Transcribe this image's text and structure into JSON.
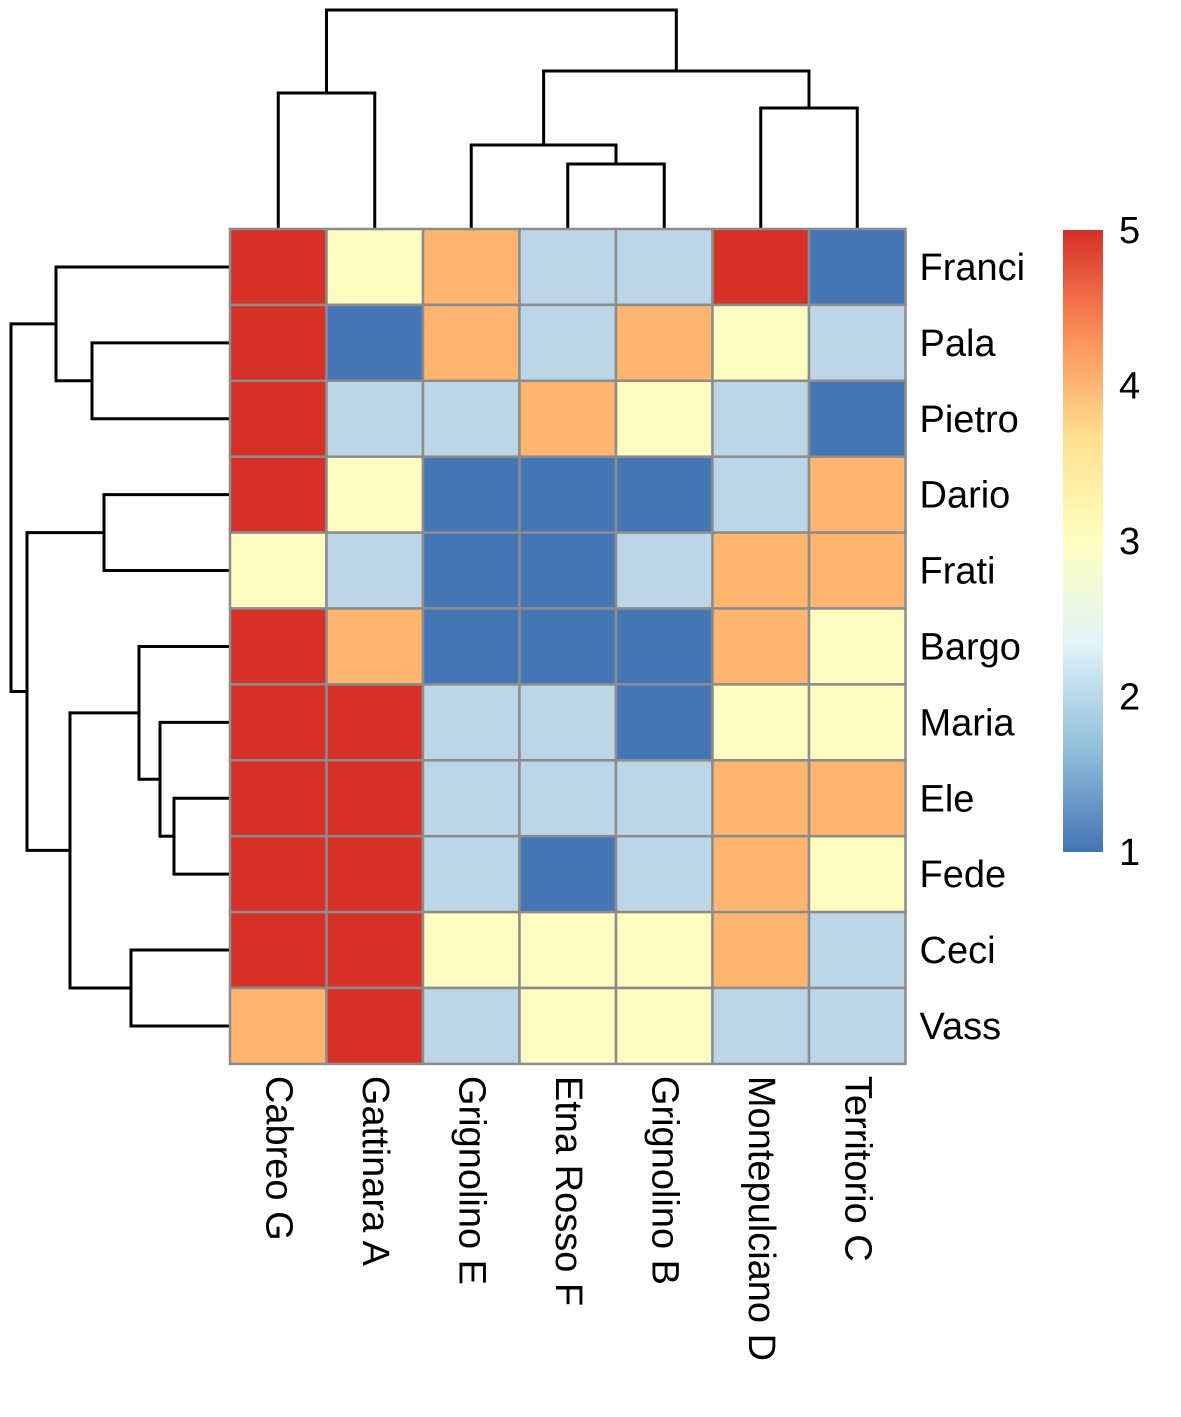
{
  "chart_data": {
    "type": "heatmap",
    "columns": [
      "Cabreo G",
      "Gattinara A",
      "Grignolino E",
      "Etna Rosso F",
      "Grignolino B",
      "Montepulciano D",
      "Territorio C"
    ],
    "rows": [
      "Franci",
      "Pala",
      "Pietro",
      "Dario",
      "Frati",
      "Bargo",
      "Maria",
      "Ele",
      "Fede",
      "Ceci",
      "Vass"
    ],
    "values": [
      [
        5,
        3,
        4,
        2,
        2,
        5,
        1
      ],
      [
        5,
        1,
        4,
        2,
        4,
        3,
        2
      ],
      [
        5,
        2,
        2,
        4,
        3,
        2,
        1
      ],
      [
        5,
        3,
        1,
        1,
        1,
        2,
        4
      ],
      [
        3,
        2,
        1,
        1,
        2,
        4,
        4
      ],
      [
        5,
        4,
        1,
        1,
        1,
        4,
        3
      ],
      [
        5,
        5,
        2,
        2,
        1,
        3,
        3
      ],
      [
        5,
        5,
        2,
        2,
        2,
        4,
        4
      ],
      [
        5,
        5,
        2,
        1,
        2,
        4,
        3
      ],
      [
        5,
        5,
        3,
        3,
        3,
        4,
        2
      ],
      [
        4,
        5,
        2,
        3,
        3,
        2,
        2
      ]
    ],
    "value_colors": {
      "1": "#4575b4",
      "2": "#bcd6e8",
      "3": "#fefcc0",
      "4": "#fdb570",
      "5": "#d73027"
    },
    "legend": {
      "ticks": [
        "1",
        "2",
        "3",
        "4",
        "5"
      ],
      "range": [
        1,
        5
      ],
      "gradient": [
        "#4575b4",
        "#91bfdb",
        "#e0f3f8",
        "#ffffbf",
        "#fee090",
        "#fc8d59",
        "#d73027"
      ],
      "placement": "right"
    },
    "row_dendrogram": [
      {
        "id": "r1",
        "children": [
          "Pala",
          "Pietro"
        ]
      },
      {
        "id": "r2",
        "children": [
          "Franci",
          "r1"
        ]
      },
      {
        "id": "r3",
        "children": [
          "Dario",
          "Frati"
        ]
      },
      {
        "id": "r4",
        "children": [
          "Ele",
          "Fede"
        ]
      },
      {
        "id": "r5",
        "children": [
          "Maria",
          "r4"
        ]
      },
      {
        "id": "r6",
        "children": [
          "Bargo",
          "r5"
        ]
      },
      {
        "id": "r7",
        "children": [
          "Ceci",
          "Vass"
        ]
      },
      {
        "id": "r8",
        "children": [
          "r6",
          "r7"
        ]
      },
      {
        "id": "r9",
        "children": [
          "r3",
          "r8"
        ]
      },
      {
        "id": "r10",
        "children": [
          "r2",
          "r9"
        ]
      }
    ],
    "column_dendrogram": [
      {
        "id": "c1",
        "children": [
          "Cabreo G",
          "Gattinara A"
        ]
      },
      {
        "id": "c2",
        "children": [
          "Etna Rosso F",
          "Grignolino B"
        ]
      },
      {
        "id": "c3",
        "children": [
          "Grignolino E",
          "c2"
        ]
      },
      {
        "id": "c4",
        "children": [
          "Montepulciano D",
          "Territorio C"
        ]
      },
      {
        "id": "c5",
        "children": [
          "c3",
          "c4"
        ]
      },
      {
        "id": "c6",
        "children": [
          "c1",
          "c5"
        ]
      }
    ]
  }
}
